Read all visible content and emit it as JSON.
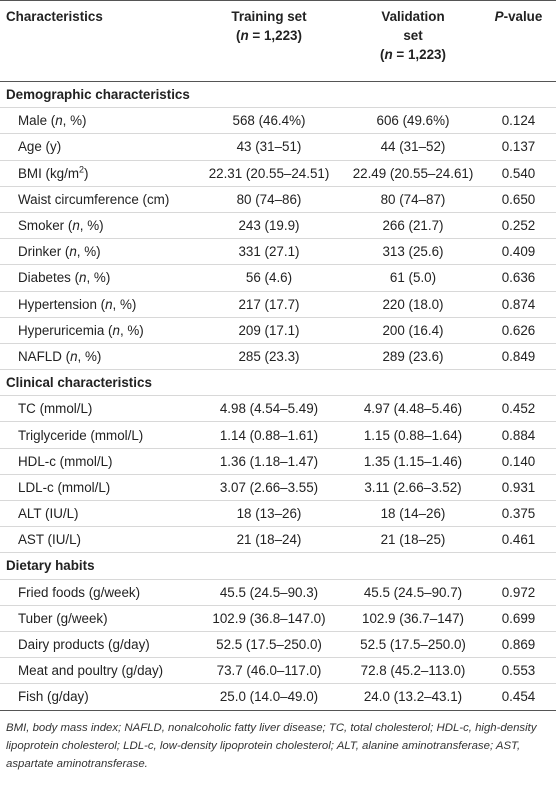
{
  "table": {
    "header": [
      [
        [
          {
            "text": "Characteristics"
          }
        ]
      ],
      [
        [
          {
            "text": "Training set"
          }
        ],
        [
          {
            "text": "("
          },
          {
            "text": "n",
            "style": "italic"
          },
          {
            "text": " = 1,223)"
          }
        ]
      ],
      [
        [
          {
            "text": "Validation"
          }
        ],
        [
          {
            "text": "set"
          }
        ],
        [
          {
            "text": "("
          },
          {
            "text": "n",
            "style": "italic"
          },
          {
            "text": " = 1,223)"
          }
        ]
      ],
      [
        [
          {
            "text": "P",
            "style": "italic"
          },
          {
            "text": "-value"
          }
        ]
      ]
    ],
    "sections": [
      {
        "title": "Demographic characteristics",
        "rows": [
          {
            "label": [
              {
                "text": "Male ("
              },
              {
                "text": "n",
                "style": "italic"
              },
              {
                "text": ", %)"
              }
            ],
            "training": "568 (46.4%)",
            "validation": "606 (49.6%)",
            "p": "0.124"
          },
          {
            "label": [
              {
                "text": "Age (y)"
              }
            ],
            "training": "43 (31–51)",
            "validation": "44 (31–52)",
            "p": "0.137"
          },
          {
            "label": [
              {
                "text": "BMI (kg/m"
              },
              {
                "text": "2",
                "style": "sup"
              },
              {
                "text": ")"
              }
            ],
            "training": "22.31 (20.55–24.51)",
            "validation": "22.49 (20.55–24.61)",
            "p": "0.540"
          },
          {
            "label": [
              {
                "text": "Waist circumference (cm)"
              }
            ],
            "training": "80 (74–86)",
            "validation": "80 (74–87)",
            "p": "0.650"
          },
          {
            "label": [
              {
                "text": "Smoker ("
              },
              {
                "text": "n",
                "style": "italic"
              },
              {
                "text": ", %)"
              }
            ],
            "training": "243 (19.9)",
            "validation": "266 (21.7)",
            "p": "0.252"
          },
          {
            "label": [
              {
                "text": "Drinker ("
              },
              {
                "text": "n",
                "style": "italic"
              },
              {
                "text": ", %)"
              }
            ],
            "training": "331 (27.1)",
            "validation": "313 (25.6)",
            "p": "0.409"
          },
          {
            "label": [
              {
                "text": "Diabetes ("
              },
              {
                "text": "n",
                "style": "italic"
              },
              {
                "text": ", %)"
              }
            ],
            "training": "56 (4.6)",
            "validation": "61 (5.0)",
            "p": "0.636"
          },
          {
            "label": [
              {
                "text": "Hypertension ("
              },
              {
                "text": "n",
                "style": "italic"
              },
              {
                "text": ", %)"
              }
            ],
            "training": "217 (17.7)",
            "validation": "220 (18.0)",
            "p": "0.874"
          },
          {
            "label": [
              {
                "text": "Hyperuricemia ("
              },
              {
                "text": "n",
                "style": "italic"
              },
              {
                "text": ", %)"
              }
            ],
            "training": "209 (17.1)",
            "validation": "200 (16.4)",
            "p": "0.626"
          },
          {
            "label": [
              {
                "text": "NAFLD ("
              },
              {
                "text": "n",
                "style": "italic"
              },
              {
                "text": ", %)"
              }
            ],
            "training": "285 (23.3)",
            "validation": "289 (23.6)",
            "p": "0.849"
          }
        ]
      },
      {
        "title": "Clinical characteristics",
        "rows": [
          {
            "label": [
              {
                "text": "TC (mmol/L)"
              }
            ],
            "training": "4.98 (4.54–5.49)",
            "validation": "4.97 (4.48–5.46)",
            "p": "0.452"
          },
          {
            "label": [
              {
                "text": "Triglyceride (mmol/L)"
              }
            ],
            "training": "1.14 (0.88–1.61)",
            "validation": "1.15 (0.88–1.64)",
            "p": "0.884"
          },
          {
            "label": [
              {
                "text": "HDL-c (mmol/L)"
              }
            ],
            "training": "1.36 (1.18–1.47)",
            "validation": "1.35 (1.15–1.46)",
            "p": "0.140"
          },
          {
            "label": [
              {
                "text": "LDL-c (mmol/L)"
              }
            ],
            "training": "3.07 (2.66–3.55)",
            "validation": "3.11 (2.66–3.52)",
            "p": "0.931"
          },
          {
            "label": [
              {
                "text": "ALT (IU/L)"
              }
            ],
            "training": "18 (13–26)",
            "validation": "18 (14–26)",
            "p": "0.375"
          },
          {
            "label": [
              {
                "text": "AST (IU/L)"
              }
            ],
            "training": "21 (18–24)",
            "validation": "21 (18–25)",
            "p": "0.461"
          }
        ]
      },
      {
        "title": "Dietary habits",
        "rows": [
          {
            "label": [
              {
                "text": "Fried foods (g/week)"
              }
            ],
            "training": "45.5 (24.5–90.3)",
            "validation": "45.5 (24.5–90.7)",
            "p": "0.972"
          },
          {
            "label": [
              {
                "text": "Tuber (g/week)"
              }
            ],
            "training": "102.9 (36.8–147.0)",
            "validation": "102.9 (36.7–147)",
            "p": "0.699"
          },
          {
            "label": [
              {
                "text": "Dairy products (g/day)"
              }
            ],
            "training": "52.5 (17.5–250.0)",
            "validation": "52.5 (17.5–250.0)",
            "p": "0.869"
          },
          {
            "label": [
              {
                "text": "Meat and poultry (g/day)"
              }
            ],
            "training": "73.7 (46.0–117.0)",
            "validation": "72.8 (45.2–113.0)",
            "p": "0.553"
          },
          {
            "label": [
              {
                "text": "Fish (g/day)"
              }
            ],
            "training": "25.0 (14.0–49.0)",
            "validation": "24.0 (13.2–43.1)",
            "p": "0.454"
          }
        ]
      }
    ],
    "footnote": "BMI, body mass index; NAFLD, nonalcoholic fatty liver disease; TC, total cholesterol; HDL-c, high-density lipoprotein cholesterol; LDL-c, low-density lipoprotein cholesterol; ALT, alanine aminotransferase; AST, aspartate aminotransferase."
  }
}
